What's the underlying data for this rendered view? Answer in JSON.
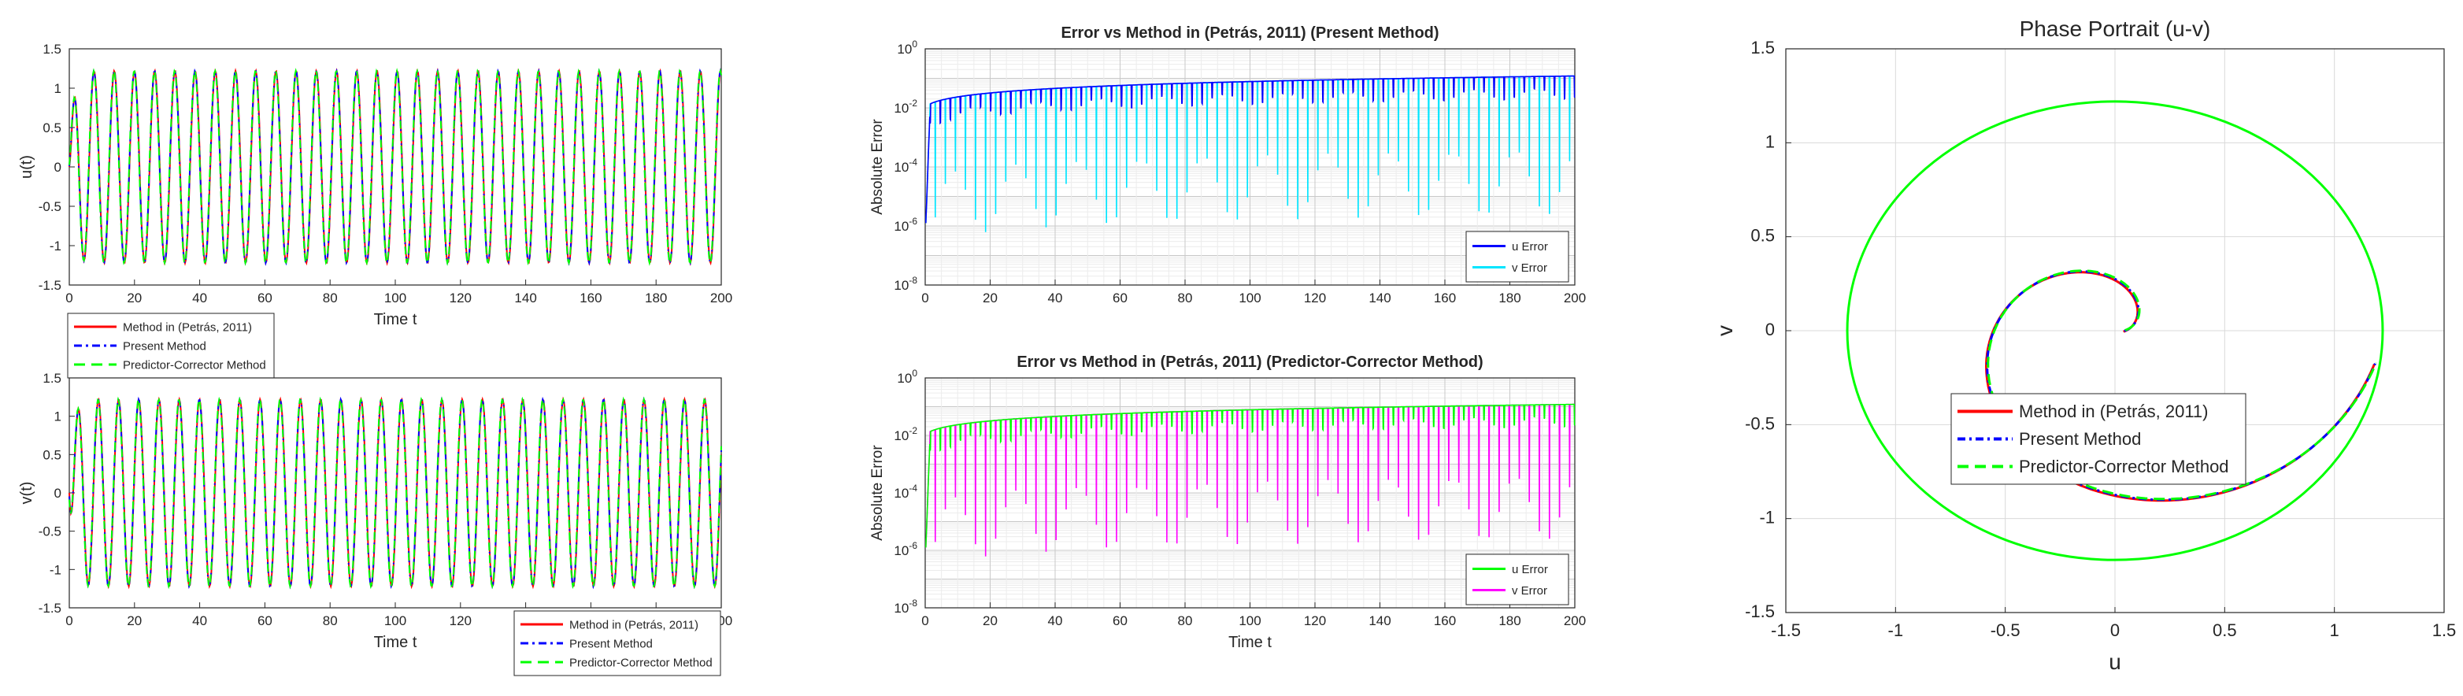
{
  "colors": {
    "red": "#ff0000",
    "blue": "#0000ff",
    "green": "#00ff00",
    "cyan": "#00e5ff",
    "magenta": "#ff00ff",
    "grid": "#d9d9d9",
    "axis": "#262626"
  },
  "chart_data": [
    {
      "id": "u_time",
      "type": "line",
      "title": "",
      "xlabel": "Time t",
      "ylabel": "u(t)",
      "xlim": [
        0,
        200
      ],
      "ylim": [
        -1.5,
        1.5
      ],
      "xticks": [
        "0",
        "20",
        "40",
        "60",
        "80",
        "100",
        "120",
        "140",
        "160",
        "180",
        "200"
      ],
      "yticks": [
        "1.5",
        "1",
        "0.5",
        "0",
        "-0.5",
        "-1",
        "-1.5"
      ],
      "signal": {
        "amplitude": 1.22,
        "period": 6.2,
        "phase": "cos",
        "transient_start": 0
      },
      "series": [
        {
          "name": "Method in (Petrás, 2011)",
          "color": "#ff0000",
          "style": "solid"
        },
        {
          "name": "Present Method",
          "color": "#0000ff",
          "style": "dashdot"
        },
        {
          "name": "Predictor-Corrector Method",
          "color": "#00ff00",
          "style": "dashed"
        }
      ],
      "legend": "below-left"
    },
    {
      "id": "v_time",
      "type": "line",
      "title": "",
      "xlabel": "Time t",
      "ylabel": "v(t)",
      "xlim": [
        0,
        200
      ],
      "ylim": [
        -1.5,
        1.5
      ],
      "xticks": [
        "0",
        "20",
        "40",
        "60",
        "80",
        "100",
        "120",
        "140",
        "160",
        "180",
        "200"
      ],
      "yticks": [
        "1.5",
        "1",
        "0.5",
        "0",
        "-0.5",
        "-1",
        "-1.5"
      ],
      "signal": {
        "amplitude": 1.22,
        "period": 6.2,
        "phase": "sin",
        "transient_start": 0
      },
      "series": [
        {
          "name": "Method in (Petrás, 2011)",
          "color": "#ff0000",
          "style": "solid"
        },
        {
          "name": "Present Method",
          "color": "#0000ff",
          "style": "dashdot"
        },
        {
          "name": "Predictor-Corrector Method",
          "color": "#00ff00",
          "style": "dashed"
        }
      ],
      "legend": "bottom-right"
    },
    {
      "id": "err_present",
      "type": "line",
      "log_y": true,
      "title": "Error vs Method in (Petrás, 2011)   (Present Method)",
      "xlabel": "",
      "ylabel": "Absolute Error",
      "xlim": [
        0,
        200
      ],
      "ylim": [
        1e-08,
        1
      ],
      "xticks": [
        "0",
        "20",
        "40",
        "60",
        "80",
        "100",
        "120",
        "140",
        "160",
        "180",
        "200"
      ],
      "yticks_exp": [
        0,
        -2,
        -4,
        -6,
        -8
      ],
      "envelope": {
        "start": 0.01,
        "end": 0.12
      },
      "series": [
        {
          "name": "u Error",
          "color": "#0000ff"
        },
        {
          "name": "v Error",
          "color": "#00e5ff"
        }
      ],
      "legend": "bottom-right"
    },
    {
      "id": "err_pc",
      "type": "line",
      "log_y": true,
      "title": "Error vs Method in (Petrás, 2011)   (Predictor-Corrector Method)",
      "xlabel": "Time t",
      "ylabel": "Absolute Error",
      "xlim": [
        0,
        200
      ],
      "ylim": [
        1e-08,
        1
      ],
      "xticks": [
        "0",
        "20",
        "40",
        "60",
        "80",
        "100",
        "120",
        "140",
        "160",
        "180",
        "200"
      ],
      "yticks_exp": [
        0,
        -2,
        -4,
        -6,
        -8
      ],
      "envelope": {
        "start": 0.01,
        "end": 0.12
      },
      "series": [
        {
          "name": "u Error",
          "color": "#00ff00"
        },
        {
          "name": "v Error",
          "color": "#ff00ff"
        }
      ],
      "legend": "bottom-right"
    },
    {
      "id": "phase",
      "type": "line",
      "title": "Phase Portrait (u-v)",
      "xlabel": "u",
      "ylabel": "v",
      "xlim": [
        -1.5,
        1.5
      ],
      "ylim": [
        -1.5,
        1.5
      ],
      "xticks": [
        "-1.5",
        "-1",
        "-0.5",
        "0",
        "0.5",
        "1",
        "1.5"
      ],
      "yticks": [
        "1.5",
        "1",
        "0.5",
        "0",
        "-0.5",
        "-1",
        "-1.5"
      ],
      "grid": true,
      "limit_cycle_radius": 1.22,
      "series": [
        {
          "name": "Method in (Petrás, 2011)",
          "color": "#ff0000",
          "style": "solid"
        },
        {
          "name": "Present Method",
          "color": "#0000ff",
          "style": "dashdot"
        },
        {
          "name": "Predictor-Corrector Method",
          "color": "#00ff00",
          "style": "dashed"
        }
      ],
      "legend": "center"
    }
  ]
}
